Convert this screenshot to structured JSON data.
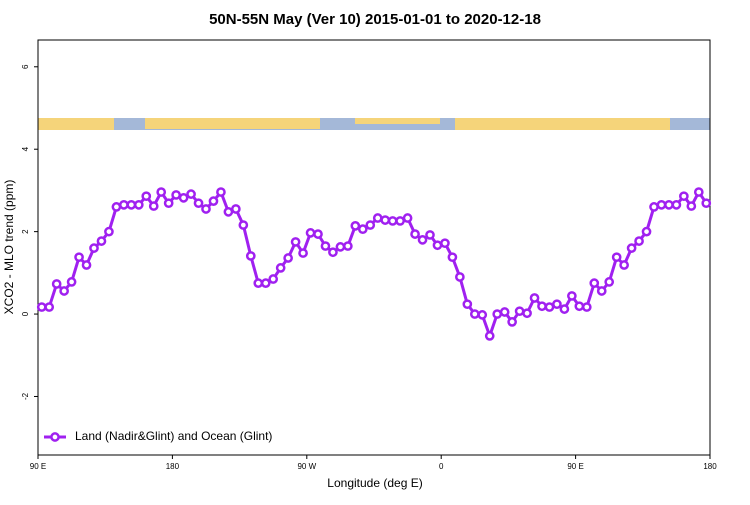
{
  "chart_data": {
    "type": "line",
    "title": "50N-55N May (Ver 10)   2015-01-01 to 2020-12-18",
    "x_label": "Longitude (deg E)",
    "y_label": "XCO2 - MLO trend (ppm)",
    "xlim": [
      90,
      540
    ],
    "ylim": [
      -3.42,
      6.65
    ],
    "xticks": [
      {
        "value": 90,
        "label": "90 E"
      },
      180,
      {
        "value": 270,
        "label": "90 W"
      },
      {
        "value": 360,
        "label": "0"
      },
      {
        "value": 450,
        "label": "90 E"
      },
      {
        "value": 540,
        "label": "180"
      }
    ],
    "yticks": [
      -2,
      0,
      2,
      4,
      6
    ],
    "legend": "bottom-left",
    "series": [
      {
        "name": "Land (Nadir&Glint) and Ocean (Glint)",
        "color": "#a020f0",
        "x": [
          92.5,
          97.5,
          102.5,
          107.5,
          112.5,
          117.5,
          122.5,
          127.5,
          132.5,
          137.5,
          142.5,
          147.5,
          152.5,
          157.5,
          162.5,
          167.5,
          172.5,
          177.5,
          182.5,
          187.5,
          192.5,
          197.5,
          202.5,
          207.5,
          212.5,
          217.5,
          222.5,
          227.5,
          232.5,
          237.5,
          242.5,
          247.5,
          252.5,
          257.5,
          262.5,
          267.5,
          272.5,
          277.5,
          282.5,
          287.5,
          292.5,
          297.5,
          302.5,
          307.5,
          312.5,
          317.5,
          322.5,
          327.5,
          332.5,
          337.5,
          342.5,
          347.5,
          352.5,
          357.5,
          362.5,
          367.5,
          372.5,
          377.5,
          382.5,
          387.5,
          392.5,
          397.5,
          402.5,
          407.5,
          412.5,
          417.5,
          422.5,
          427.5,
          432.5,
          437.5,
          442.5,
          447.5,
          452.5,
          457.5,
          462.5,
          467.5,
          472.5,
          477.5,
          482.5,
          487.5,
          492.5,
          497.5,
          502.5,
          507.5,
          512.5,
          517.5,
          522.5,
          527.5,
          532.5,
          537.5
        ],
        "values": [
          0.17,
          0.17,
          0.73,
          0.56,
          0.78,
          1.38,
          1.19,
          1.6,
          1.77,
          2.0,
          2.6,
          2.65,
          2.65,
          2.65,
          2.86,
          2.62,
          2.96,
          2.69,
          2.89,
          2.82,
          2.91,
          2.69,
          2.55,
          2.74,
          2.96,
          2.48,
          2.55,
          2.16,
          1.41,
          0.75,
          0.75,
          0.85,
          1.12,
          1.36,
          1.75,
          1.48,
          1.97,
          1.94,
          1.65,
          1.5,
          1.63,
          1.65,
          2.14,
          2.06,
          2.16,
          2.33,
          2.28,
          2.26,
          2.26,
          2.33,
          1.94,
          1.8,
          1.92,
          1.67,
          1.72,
          1.38,
          0.9,
          0.24,
          0,
          -0.02,
          -0.53,
          0,
          0.05,
          -0.19,
          0.07,
          0.02,
          0.39,
          0.19,
          0.17,
          0.24,
          0.12,
          0.44,
          0.19,
          0.17,
          0.75,
          0.56,
          0.78,
          1.38,
          1.19,
          1.6,
          1.77,
          2.0,
          2.6,
          2.65,
          2.65,
          2.65,
          2.86,
          2.62,
          2.96,
          2.69
        ]
      }
    ]
  }
}
